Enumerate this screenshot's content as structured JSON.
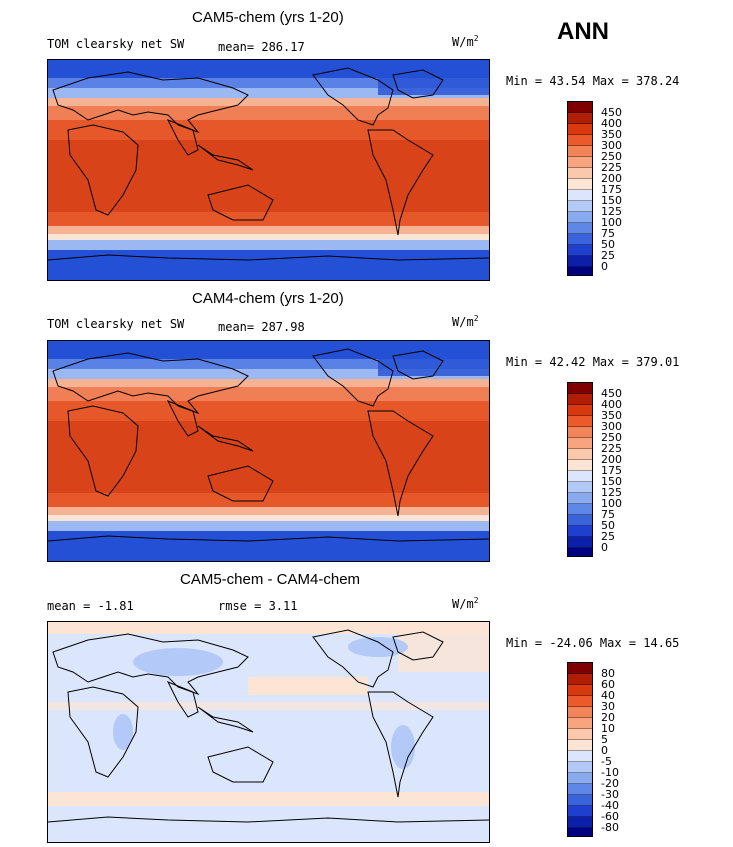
{
  "season": "ANN",
  "units_main": "W/m",
  "units_sup": "2",
  "panels": [
    {
      "title": "CAM5-chem (yrs 1-20)",
      "left_label": "TOM clearsky net SW",
      "mean_text": "mean= 286.17",
      "minmax": "Min =  43.54 Max = 378.24",
      "levels": [
        "450",
        "400",
        "350",
        "300",
        "250",
        "225",
        "200",
        "175",
        "150",
        "125",
        "100",
        "75",
        "50",
        "25",
        "0"
      ]
    },
    {
      "title": "CAM4-chem (yrs 1-20)",
      "left_label": "TOM clearsky net SW",
      "mean_text": "mean= 287.98",
      "minmax": "Min =  42.42 Max = 379.01",
      "levels": [
        "450",
        "400",
        "350",
        "300",
        "250",
        "225",
        "200",
        "175",
        "150",
        "125",
        "100",
        "75",
        "50",
        "25",
        "0"
      ]
    },
    {
      "title": "CAM5-chem - CAM4-chem",
      "mean_text": "mean =  -1.81",
      "rmse_text": "rmse =   3.11",
      "minmax": "Min = -24.06 Max =  14.65",
      "levels": [
        "80",
        "60",
        "40",
        "30",
        "20",
        "10",
        "5",
        "0",
        "-5",
        "-10",
        "-20",
        "-30",
        "-40",
        "-60",
        "-80"
      ]
    }
  ],
  "colorbar_colors": [
    "#7f0000",
    "#b01e05",
    "#d8390f",
    "#eb5a2a",
    "#f2845a",
    "#f7a47f",
    "#fac8ab",
    "#fde5d5",
    "#dbe5fb",
    "#b3c9f7",
    "#8aaaf0",
    "#5f87e8",
    "#3a63dc",
    "#1f3fcf",
    "#0d1ea8",
    "#000080"
  ]
}
